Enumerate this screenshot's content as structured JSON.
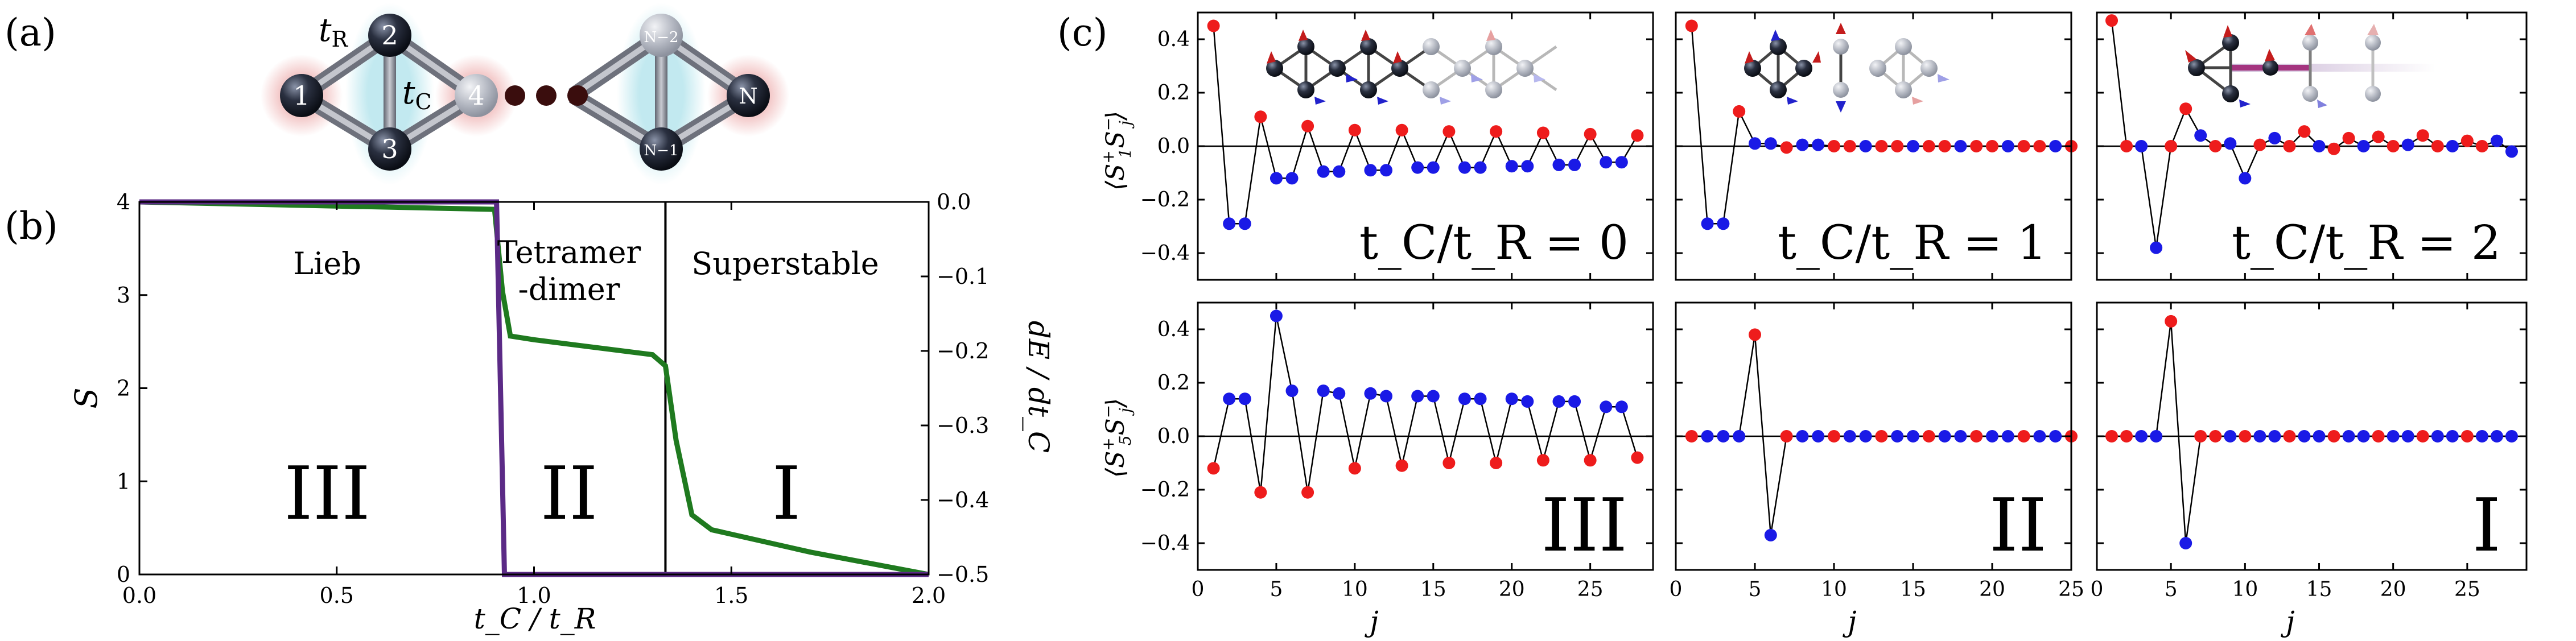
{
  "panel_labels": [
    "(a)",
    "(b)",
    "(c)"
  ],
  "colors": {
    "up": "#ee1c1c",
    "down": "#1a1ae6",
    "spin_curve": "#5b2a86",
    "energy_curve": "#1f7a1f",
    "pink_glow": "#f3c8c8",
    "cyan_glow": "#bfe8ef",
    "node_dark": "#151a26",
    "dots": "#3a0d0d"
  },
  "diagram": {
    "nodes": [
      "1",
      "2",
      "3",
      "4",
      "N−2",
      "N−1",
      "N"
    ],
    "t_r": "t",
    "t_r_sub": "R",
    "t_c": "t",
    "t_c_sub": "C"
  },
  "chart_data": [
    {
      "id": "b",
      "type": "line",
      "xlabel": "t_C / t_R",
      "ylabel": "S",
      "y2label": "dE / dt_C",
      "xlim": [
        0,
        2
      ],
      "ylim": [
        0,
        4
      ],
      "y2lim": [
        -0.5,
        0
      ],
      "xticks": [
        "0.0",
        "0.5",
        "1.0",
        "1.5",
        "2.0"
      ],
      "yticks": [
        "0",
        "1",
        "2",
        "3",
        "4"
      ],
      "y2ticks": [
        "0.0",
        "−0.1",
        "−0.2",
        "−0.3",
        "−0.4",
        "−0.5"
      ],
      "phase_names": [
        "Lieb",
        "Tetramer",
        "-dimer",
        "Superstable"
      ],
      "phase_numerals": [
        "III",
        "II",
        "I"
      ],
      "boundaries": [
        0.92,
        1.333
      ],
      "series": [
        {
          "name": "S",
          "axis": "left",
          "x": [
            0,
            0.905,
            0.915,
            0.925,
            2.0
          ],
          "y": [
            4,
            4,
            2,
            0,
            0
          ]
        },
        {
          "name": "dE/dt_C",
          "axis": "right",
          "x": [
            0,
            0.9,
            0.92,
            0.94,
            1.0,
            1.3,
            1.333,
            1.36,
            1.4,
            1.45,
            1.7,
            2.0
          ],
          "y": [
            0,
            -0.01,
            -0.12,
            -0.18,
            -0.185,
            -0.205,
            -0.22,
            -0.32,
            -0.42,
            -0.44,
            -0.47,
            -0.5
          ]
        }
      ]
    },
    {
      "id": "c",
      "type": "scatter",
      "xlabel": "j",
      "row_ylabels": [
        {
          "main": "⟨S",
          "sup1": "+",
          "sub1": "1",
          "sup2": "−",
          "sub2": "j",
          "close": "⟩"
        },
        {
          "main": "⟨S",
          "sup1": "+",
          "sub1": "5",
          "sup2": "−",
          "sub2": "j",
          "close": "⟩"
        }
      ],
      "ylim": [
        -0.5,
        0.5
      ],
      "yticks": [
        "0.4",
        "0.2",
        "0.0",
        "−0.2",
        "−0.4"
      ],
      "column_ratio_labels": [
        "t_C/t_R = 0",
        "t_C/t_R = 1",
        "t_C/t_R = 2"
      ],
      "row2_numerals": [
        "III",
        "II",
        "I"
      ],
      "panels": [
        {
          "row": 0,
          "col": 0,
          "xlim": [
            0,
            29
          ],
          "xticks": [
            "0",
            "5",
            "10",
            "15",
            "20",
            "25"
          ],
          "values": [
            0.45,
            -0.29,
            -0.29,
            0.11,
            -0.12,
            -0.12,
            0.075,
            -0.095,
            -0.095,
            0.06,
            -0.09,
            -0.09,
            0.06,
            -0.08,
            -0.08,
            0.055,
            -0.08,
            -0.08,
            0.055,
            -0.075,
            -0.075,
            0.05,
            -0.07,
            -0.07,
            0.045,
            -0.06,
            -0.06,
            0.04
          ],
          "colors": [
            "r",
            "b",
            "b",
            "r",
            "b",
            "b",
            "r",
            "b",
            "b",
            "r",
            "b",
            "b",
            "r",
            "b",
            "b",
            "r",
            "b",
            "b",
            "r",
            "b",
            "b",
            "r",
            "b",
            "b",
            "r",
            "b",
            "b",
            "r"
          ]
        },
        {
          "row": 0,
          "col": 1,
          "xlim": [
            0,
            25
          ],
          "xticks": [
            "0",
            "5",
            "10",
            "15",
            "20",
            "25"
          ],
          "values": [
            0.45,
            -0.29,
            -0.29,
            0.13,
            0.01,
            0.01,
            -0.005,
            0.005,
            0.005,
            0,
            0,
            0,
            0,
            0,
            0,
            0,
            0,
            0,
            0,
            0,
            0,
            0,
            0,
            0,
            0
          ],
          "colors": [
            "r",
            "b",
            "b",
            "r",
            "b",
            "b",
            "r",
            "b",
            "b",
            "r",
            "r",
            "b",
            "r",
            "r",
            "b",
            "r",
            "r",
            "b",
            "r",
            "r",
            "b",
            "r",
            "r",
            "b",
            "r"
          ]
        },
        {
          "row": 0,
          "col": 2,
          "xlim": [
            0,
            29
          ],
          "xticks": [
            "0",
            "5",
            "10",
            "15",
            "20",
            "25"
          ],
          "values": [
            0.47,
            0,
            0,
            -0.38,
            0,
            0.14,
            0.04,
            0,
            0.01,
            -0.12,
            0.005,
            0.03,
            0,
            0.055,
            0,
            -0.01,
            0.03,
            0,
            0.035,
            0,
            0.005,
            0.04,
            0,
            0,
            0.02,
            0,
            0.02,
            -0.02
          ],
          "colors": [
            "r",
            "r",
            "b",
            "b",
            "r",
            "r",
            "b",
            "r",
            "b",
            "b",
            "r",
            "b",
            "r",
            "r",
            "b",
            "r",
            "r",
            "b",
            "r",
            "r",
            "b",
            "r",
            "r",
            "b",
            "r",
            "r",
            "b",
            "b"
          ]
        },
        {
          "row": 1,
          "col": 0,
          "xlim": [
            0,
            29
          ],
          "xticks": [
            "0",
            "5",
            "10",
            "15",
            "20",
            "25"
          ],
          "values": [
            -0.12,
            0.14,
            0.14,
            -0.21,
            0.45,
            0.17,
            -0.21,
            0.17,
            0.16,
            -0.12,
            0.16,
            0.15,
            -0.11,
            0.15,
            0.15,
            -0.1,
            0.14,
            0.14,
            -0.1,
            0.14,
            0.13,
            -0.09,
            0.13,
            0.13,
            -0.09,
            0.11,
            0.11,
            -0.08
          ],
          "colors": [
            "r",
            "b",
            "b",
            "r",
            "b",
            "b",
            "r",
            "b",
            "b",
            "r",
            "b",
            "b",
            "r",
            "b",
            "b",
            "r",
            "b",
            "b",
            "r",
            "b",
            "b",
            "r",
            "b",
            "b",
            "r",
            "b",
            "b",
            "r"
          ]
        },
        {
          "row": 1,
          "col": 1,
          "xlim": [
            0,
            25
          ],
          "xticks": [
            "0",
            "5",
            "10",
            "15",
            "20",
            "25"
          ],
          "values": [
            0,
            0,
            0,
            0,
            0.38,
            -0.37,
            0,
            0,
            0,
            0,
            0,
            0,
            0,
            0,
            0,
            0,
            0,
            0,
            0,
            0,
            0,
            0,
            0,
            0,
            0
          ],
          "colors": [
            "r",
            "b",
            "b",
            "b",
            "r",
            "b",
            "r",
            "b",
            "b",
            "r",
            "b",
            "b",
            "r",
            "b",
            "b",
            "r",
            "b",
            "b",
            "r",
            "b",
            "b",
            "r",
            "b",
            "b",
            "r"
          ]
        },
        {
          "row": 1,
          "col": 2,
          "xlim": [
            0,
            29
          ],
          "xticks": [
            "0",
            "5",
            "10",
            "15",
            "20",
            "25"
          ],
          "values": [
            0,
            0,
            0,
            0,
            0.43,
            -0.4,
            0,
            0,
            0,
            0,
            0,
            0,
            0,
            0,
            0,
            0,
            0,
            0,
            0,
            0,
            0,
            0,
            0,
            0,
            0,
            0,
            0,
            0
          ],
          "colors": [
            "r",
            "r",
            "b",
            "b",
            "r",
            "b",
            "r",
            "r",
            "b",
            "r",
            "b",
            "b",
            "r",
            "b",
            "b",
            "r",
            "b",
            "b",
            "r",
            "b",
            "b",
            "r",
            "b",
            "b",
            "r",
            "b",
            "b",
            "b"
          ]
        }
      ]
    }
  ]
}
